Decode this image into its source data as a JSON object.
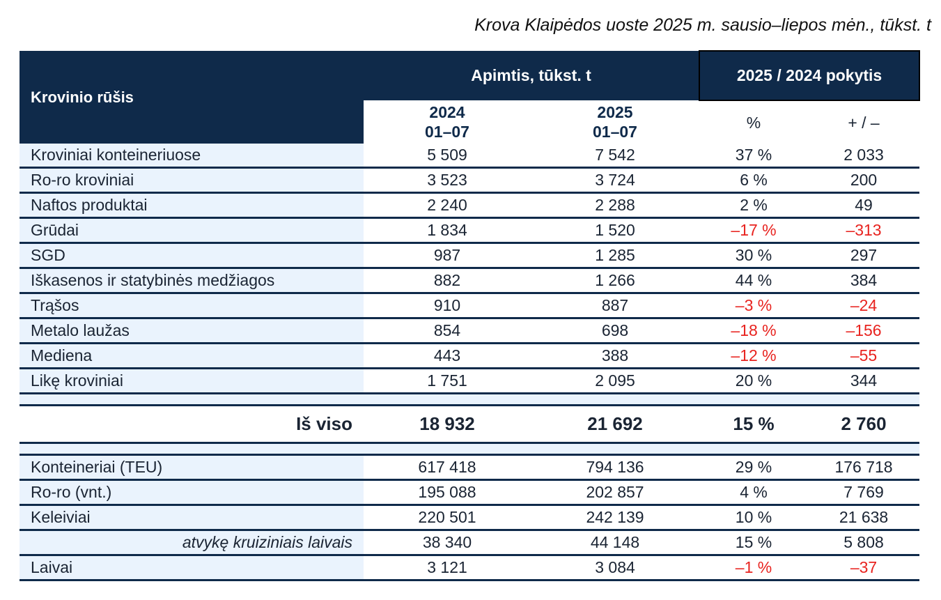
{
  "title": "Krova Klaipėdos uoste 2025 m. sausio–liepos mėn., tūkst. t",
  "header": {
    "type": "Krovinio rūšis",
    "volume": "Apimtis, tūkst. t",
    "change": "2025 / 2024 pokytis",
    "y2024": "2024",
    "y2025": "2025",
    "period": "01–07",
    "pct": "%",
    "diff": "+ / –"
  },
  "rows": [
    {
      "label": "Kroviniai konteineriuose",
      "v2024": "5 509",
      "v2025": "7 542",
      "pct": "37 %",
      "diff": "2 033",
      "neg": false
    },
    {
      "label": "Ro-ro kroviniai",
      "v2024": "3 523",
      "v2025": "3 724",
      "pct": "6 %",
      "diff": "200",
      "neg": false
    },
    {
      "label": "Naftos produktai",
      "v2024": "2 240",
      "v2025": "2 288",
      "pct": "2 %",
      "diff": "49",
      "neg": false
    },
    {
      "label": "Grūdai",
      "v2024": "1 834",
      "v2025": "1 520",
      "pct": "–17 %",
      "diff": "–313",
      "neg": true
    },
    {
      "label": "SGD",
      "v2024": "987",
      "v2025": "1 285",
      "pct": "30 %",
      "diff": "297",
      "neg": false
    },
    {
      "label": "Iškasenos ir statybinės medžiagos",
      "v2024": "882",
      "v2025": "1 266",
      "pct": "44 %",
      "diff": "384",
      "neg": false
    },
    {
      "label": "Trąšos",
      "v2024": "910",
      "v2025": "887",
      "pct": "–3 %",
      "diff": "–24",
      "neg": true
    },
    {
      "label": "Metalo laužas",
      "v2024": "854",
      "v2025": "698",
      "pct": "–18 %",
      "diff": "–156",
      "neg": true
    },
    {
      "label": "Mediena",
      "v2024": "443",
      "v2025": "388",
      "pct": "–12 %",
      "diff": "–55",
      "neg": true
    },
    {
      "label": "Likę kroviniai",
      "v2024": "1 751",
      "v2025": "2 095",
      "pct": "20 %",
      "diff": "344",
      "neg": false
    }
  ],
  "total": {
    "label": "Iš viso",
    "v2024": "18 932",
    "v2025": "21 692",
    "pct": "15 %",
    "diff": "2 760"
  },
  "extra": [
    {
      "label": "Konteineriai (TEU)",
      "v2024": "617 418",
      "v2025": "794 136",
      "pct": "29 %",
      "diff": "176 718",
      "neg": false
    },
    {
      "label": "Ro-ro (vnt.)",
      "v2024": "195 088",
      "v2025": "202 857",
      "pct": "4 %",
      "diff": "7 769",
      "neg": false
    },
    {
      "label": "Keleiviai",
      "v2024": "220 501",
      "v2025": "242 139",
      "pct": "10 %",
      "diff": "21 638",
      "neg": false
    },
    {
      "label": "atvykę kruiziniais laivais",
      "v2024": "38 340",
      "v2025": "44 148",
      "pct": "15 %",
      "diff": "5 808",
      "neg": false,
      "italic": true
    },
    {
      "label": "Laivai",
      "v2024": "3 121",
      "v2025": "3 084",
      "pct": "–1 %",
      "diff": "–37",
      "neg": true
    }
  ]
}
